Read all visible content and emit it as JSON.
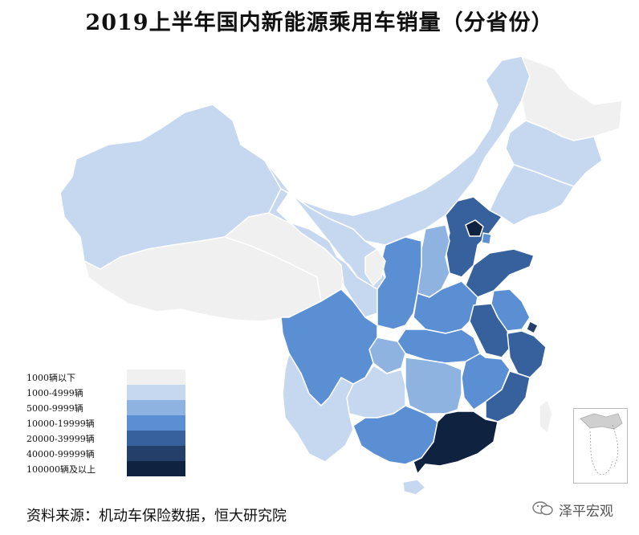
{
  "title": "2019上半年国内新能源乘用车销量（分省份）",
  "legend": [
    {
      "label": "1000辆以下",
      "color": "#f0f0f0"
    },
    {
      "label": "1000-4999辆",
      "color": "#c6d8f0"
    },
    {
      "label": "5000-9999辆",
      "color": "#8fb3e0"
    },
    {
      "label": "10000-19999辆",
      "color": "#5b8fd4"
    },
    {
      "label": "20000-39999辆",
      "color": "#36619c"
    },
    {
      "label": "40000-99999辆",
      "color": "#233f6a"
    },
    {
      "label": "100000辆及以上",
      "color": "#0f2341"
    }
  ],
  "source": "资料来源：机动车保险数据，恒大研究院",
  "watermark": "泽平宏观",
  "icons": {
    "watermark": "wechat-icon"
  }
}
